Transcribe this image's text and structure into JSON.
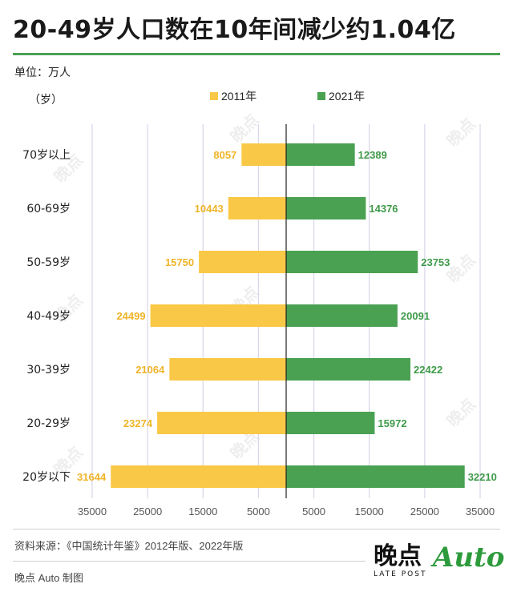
{
  "title": "20-49岁人口数在10年间减少约1.04亿",
  "unit_label": "单位：万人",
  "y_unit_label": "（岁）",
  "legend": [
    {
      "label": "2011年",
      "color": "#f9c846"
    },
    {
      "label": "2021年",
      "color": "#4aa152"
    }
  ],
  "source": "资料来源：《中国统计年鉴》2012年版、2022年版",
  "maker": "晚点 Auto 制图",
  "logo": {
    "main": "晚点",
    "sub": "LATE POST",
    "auto": "Auto"
  },
  "watermark": "晚点",
  "chart_data": {
    "type": "bar",
    "orientation": "horizontal-diverging",
    "categories": [
      "70岁以上",
      "60-69岁",
      "50-59岁",
      "40-49岁",
      "30-39岁",
      "20-29岁",
      "20岁以下"
    ],
    "series": [
      {
        "name": "2011年",
        "color": "#f9c846",
        "label_color": "#f0b428",
        "direction": "left",
        "values": [
          8057,
          10443,
          15750,
          24499,
          21064,
          23274,
          31644
        ]
      },
      {
        "name": "2021年",
        "color": "#4aa152",
        "label_color": "#3f9a4a",
        "direction": "right",
        "values": [
          12389,
          14376,
          23753,
          20091,
          22422,
          15972,
          32210
        ]
      }
    ],
    "x_ticks_left": [
      "35000",
      "25000",
      "15000",
      "5000"
    ],
    "x_tick_values_left": [
      35000,
      25000,
      15000,
      5000
    ],
    "x_ticks_right": [
      "5000",
      "15000",
      "25000",
      "35000"
    ],
    "x_tick_values_right": [
      5000,
      15000,
      25000,
      35000
    ],
    "xlim": [
      -35000,
      35000
    ],
    "grid": true
  }
}
